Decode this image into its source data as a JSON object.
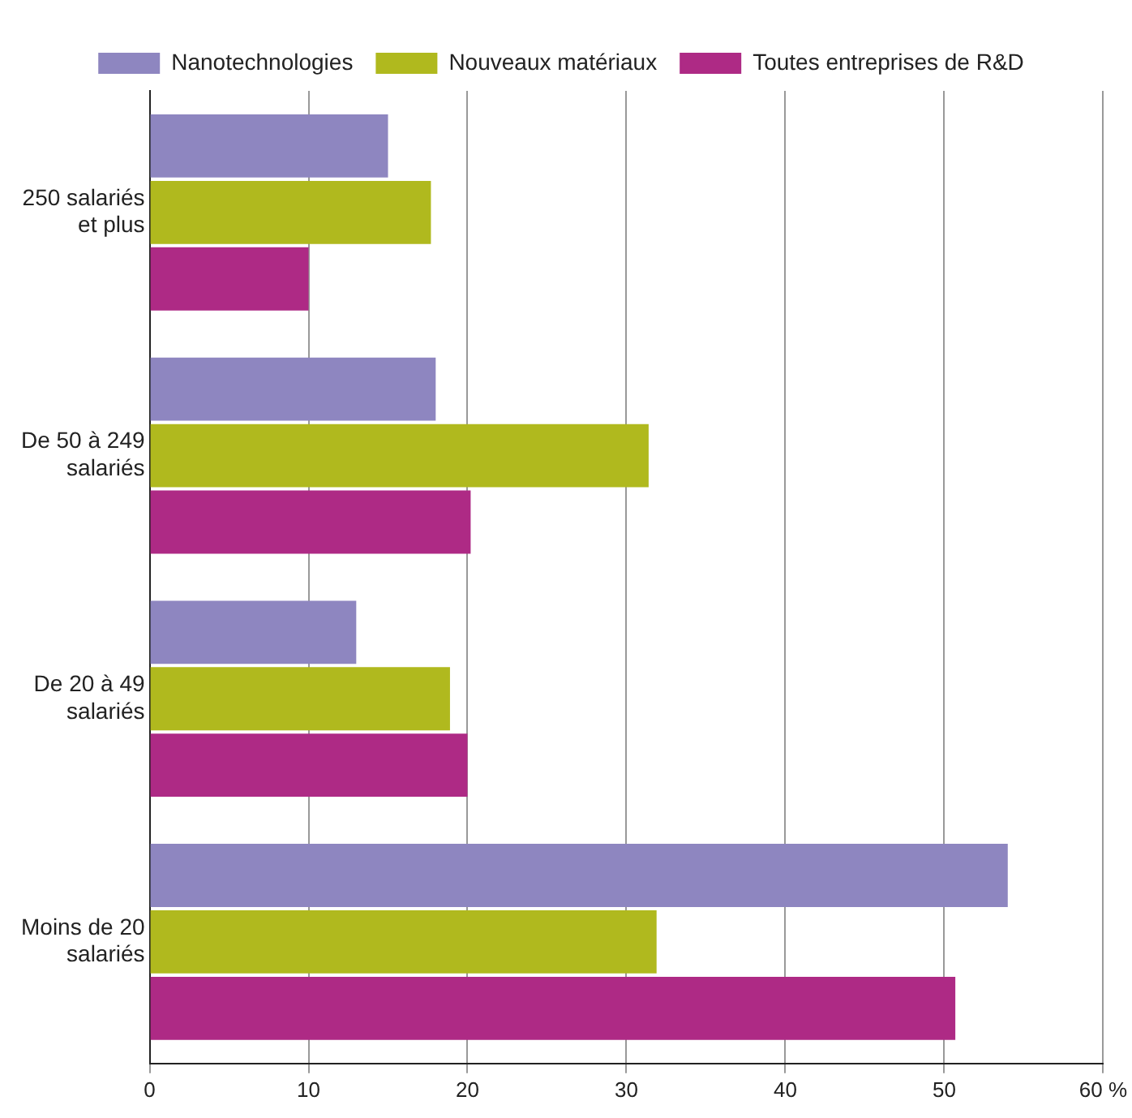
{
  "chart_data": {
    "type": "bar",
    "orientation": "horizontal",
    "categories": [
      "250 salariés et plus",
      "De 50 à 249 salariés",
      "De 20 à 49 salariés",
      "Moins de 20 salariés"
    ],
    "series": [
      {
        "name": "Nanotechnologies",
        "color": "#8e86c0",
        "values": [
          15,
          18,
          13,
          54
        ]
      },
      {
        "name": "Nouveaux matériaux",
        "color": "#b0b91e",
        "values": [
          17.7,
          31.4,
          18.9,
          31.9
        ]
      },
      {
        "name": "Toutes entreprises de R&D",
        "color": "#ae2a85",
        "values": [
          10,
          20.2,
          20,
          50.7
        ]
      }
    ],
    "xlim": [
      0,
      60
    ],
    "xticks": [
      0,
      10,
      20,
      30,
      40,
      50,
      {
        "value": 60,
        "label": "60 %"
      }
    ],
    "grid": "x",
    "legend": "top"
  }
}
